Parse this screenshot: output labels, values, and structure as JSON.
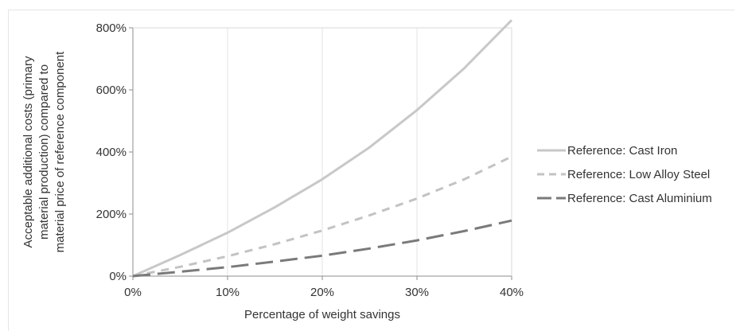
{
  "chart_data": {
    "type": "line",
    "title": "",
    "xlabel": "Percentage of weight savings",
    "ylabel_lines": [
      "Acceptable additional costs (primary",
      "material production) compared to",
      "material price of reference component"
    ],
    "xlim": [
      0,
      40
    ],
    "ylim": [
      0,
      800
    ],
    "xticks": [
      0,
      10,
      20,
      30,
      40
    ],
    "xtick_labels": [
      "0%",
      "10%",
      "20%",
      "30%",
      "40%"
    ],
    "yticks": [
      0,
      200,
      400,
      600,
      800
    ],
    "ytick_labels": [
      "0%",
      "200%",
      "400%",
      "600%",
      "800%"
    ],
    "grid": "vertical",
    "legend_position": "right",
    "x": [
      0,
      5,
      10,
      15,
      20,
      25,
      30,
      35,
      40
    ],
    "series": [
      {
        "name": "Reference: Cast Iron",
        "color": "#c8c8c8",
        "dash": "solid",
        "values": [
          0,
          68,
          140,
          222,
          312,
          415,
          535,
          670,
          825
        ]
      },
      {
        "name": "Reference: Low Alloy Steel",
        "color": "#c3c3c3",
        "dash": "dashed",
        "values": [
          0,
          30,
          64,
          103,
          147,
          196,
          250,
          312,
          385
        ]
      },
      {
        "name": "Reference: Cast Aluminium",
        "color": "#7a7a7a",
        "dash": "long-dashed",
        "values": [
          0,
          14,
          29,
          47,
          66,
          89,
          115,
          145,
          179
        ]
      }
    ]
  }
}
